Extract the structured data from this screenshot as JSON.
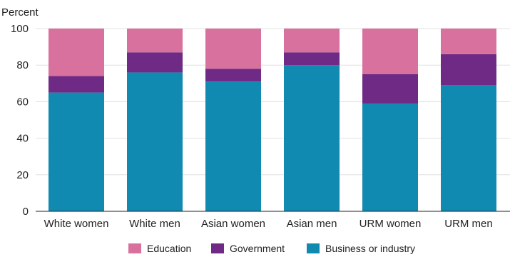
{
  "chart_data": {
    "type": "bar",
    "stacked": true,
    "ylabel": "Percent",
    "xlabel": "",
    "ylim": [
      0,
      100
    ],
    "yticks": [
      0,
      20,
      40,
      60,
      80,
      100
    ],
    "grid": "horizontal",
    "legend_position": "bottom",
    "categories": [
      "White women",
      "White men",
      "Asian women",
      "Asian men",
      "URM women",
      "URM men"
    ],
    "series": [
      {
        "name": "Business or industry",
        "color": "#118ab2",
        "values": [
          65,
          76,
          71,
          80,
          59,
          69
        ]
      },
      {
        "name": "Government",
        "color": "#6e2a84",
        "values": [
          9,
          11,
          7,
          7,
          16,
          17
        ]
      },
      {
        "name": "Education",
        "color": "#d9719e",
        "values": [
          26,
          13,
          22,
          13,
          25,
          14
        ]
      }
    ],
    "legend_order": [
      "Education",
      "Government",
      "Business or industry"
    ]
  }
}
